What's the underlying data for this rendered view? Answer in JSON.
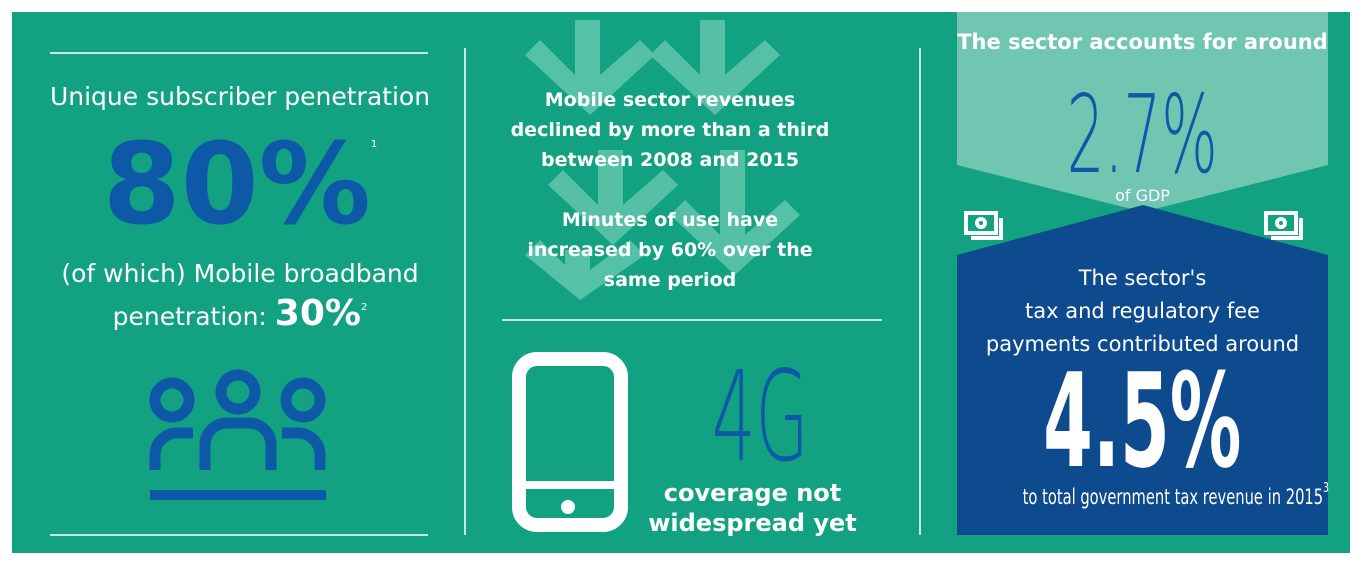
{
  "left": {
    "title": "Unique subscriber penetration",
    "stat": "80%",
    "stat_note": "1",
    "sub_text_lines": [
      "(of which) Mobile broadband",
      "penetration:"
    ],
    "sub_stat": "30%",
    "sub_note": "2"
  },
  "middle": {
    "revenue_lines": [
      "Mobile sector revenues",
      "declined by more than a third",
      "between 2008 and 2015"
    ],
    "minutes_lines": [
      "Minutes of use have",
      "increased by 60% over the",
      "same period"
    ],
    "network": "4G",
    "network_lines": [
      "coverage not",
      "widespread yet"
    ]
  },
  "right": {
    "gdp_lead": "The sector accounts for around",
    "gdp_stat": "2.7%",
    "gdp_text": "of GDP",
    "tax_lead_lines": [
      "The sector's",
      "tax and regulatory fee",
      "payments contributed around"
    ],
    "tax_stat": "4.5%",
    "tax_text": "to total government tax revenue in 2015",
    "tax_note": "3"
  }
}
